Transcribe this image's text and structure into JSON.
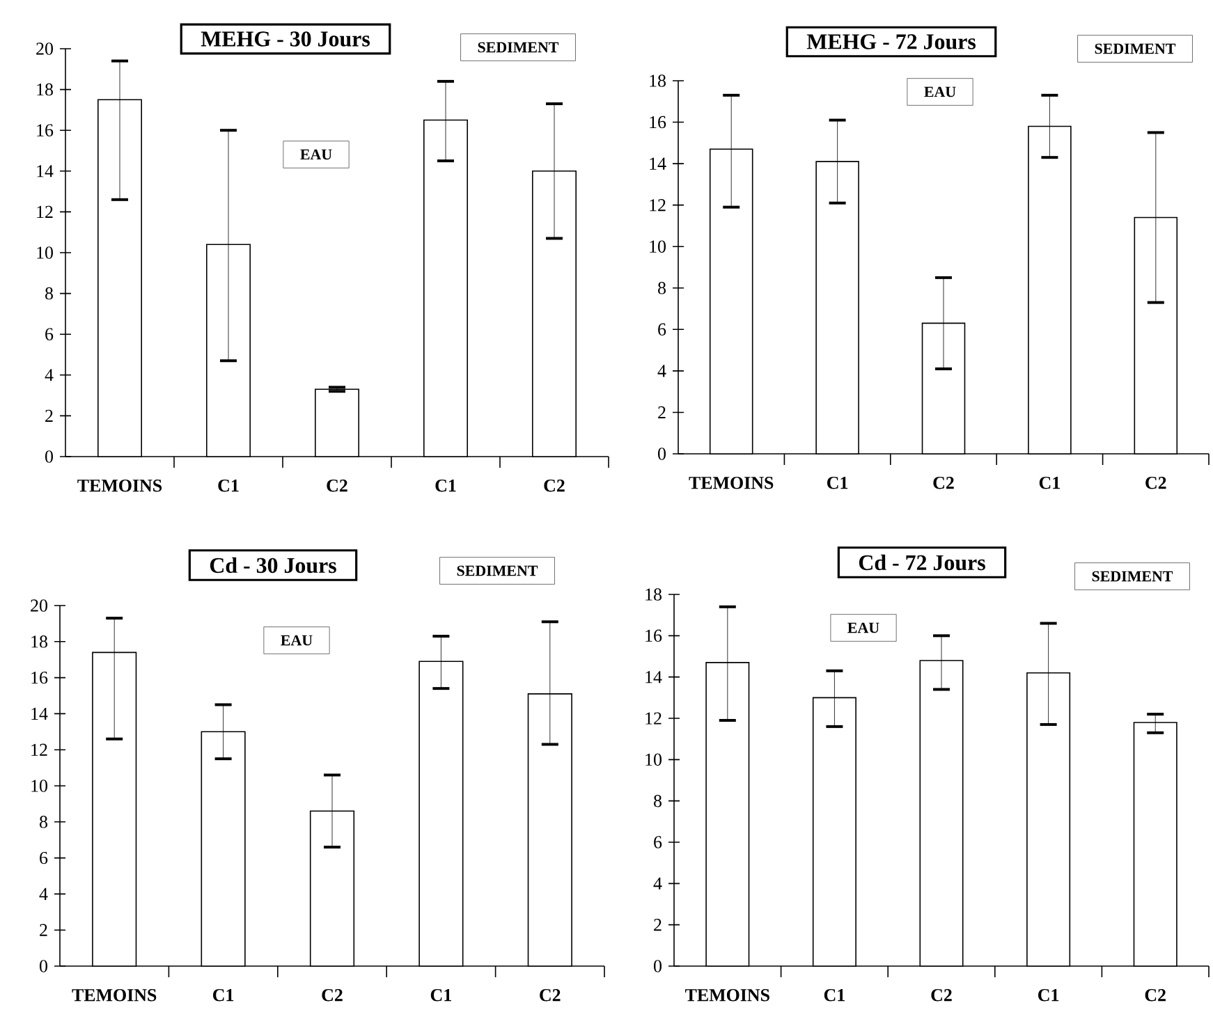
{
  "chart_data": [
    {
      "type": "bar",
      "title": "MEHG - 30 Jours",
      "categories": [
        "TEMOINS",
        "C1",
        "C2",
        "C1",
        "C2"
      ],
      "values": [
        17.5,
        10.4,
        3.3,
        16.5,
        14.0
      ],
      "color": "#ffffff",
      "errors": [
        [
          12.6,
          19.4
        ],
        [
          4.7,
          16.0
        ],
        [
          3.2,
          3.4
        ],
        [
          14.5,
          18.4
        ],
        [
          10.7,
          17.3
        ]
      ],
      "ylim": [
        0,
        20
      ],
      "yticks": [
        0,
        2,
        4,
        6,
        8,
        10,
        12,
        14,
        16,
        18,
        20
      ],
      "annotations": [
        "EAU",
        "SEDIMENT"
      ]
    },
    {
      "type": "bar",
      "title": "MEHG - 72 Jours",
      "categories": [
        "TEMOINS",
        "C1",
        "C2",
        "C1",
        "C2"
      ],
      "values": [
        14.7,
        14.1,
        6.3,
        15.8,
        11.4
      ],
      "color": "#ffffff",
      "errors": [
        [
          11.9,
          17.3
        ],
        [
          12.1,
          16.1
        ],
        [
          4.1,
          8.5
        ],
        [
          14.3,
          17.3
        ],
        [
          7.3,
          15.5
        ]
      ],
      "ylim": [
        0,
        18
      ],
      "yticks": [
        0,
        2,
        4,
        6,
        8,
        10,
        12,
        14,
        16,
        18
      ],
      "annotations": [
        "EAU",
        "SEDIMENT"
      ]
    },
    {
      "type": "bar",
      "title": "Cd - 30 Jours",
      "categories": [
        "TEMOINS",
        "C1",
        "C2",
        "C1",
        "C2"
      ],
      "values": [
        17.4,
        13.0,
        8.6,
        16.9,
        15.1
      ],
      "color": "#ffffff",
      "errors": [
        [
          12.6,
          19.3
        ],
        [
          11.5,
          14.5
        ],
        [
          6.6,
          10.6
        ],
        [
          15.4,
          18.3
        ],
        [
          12.3,
          19.1
        ]
      ],
      "ylim": [
        0,
        20
      ],
      "yticks": [
        0,
        2,
        4,
        6,
        8,
        10,
        12,
        14,
        16,
        18,
        20
      ],
      "annotations": [
        "EAU",
        "SEDIMENT"
      ]
    },
    {
      "type": "bar",
      "title": "Cd - 72 Jours",
      "categories": [
        "TEMOINS",
        "C1",
        "C2",
        "C1",
        "C2"
      ],
      "values": [
        14.7,
        13.0,
        14.8,
        14.2,
        11.8
      ],
      "color": "#ffffff",
      "errors": [
        [
          11.9,
          17.4
        ],
        [
          11.6,
          14.3
        ],
        [
          13.4,
          16.0
        ],
        [
          11.7,
          16.6
        ],
        [
          11.3,
          12.2
        ]
      ],
      "ylim": [
        0,
        18
      ],
      "yticks": [
        0,
        2,
        4,
        6,
        8,
        10,
        12,
        14,
        16,
        18
      ],
      "annotations": [
        "EAU",
        "SEDIMENT"
      ]
    }
  ]
}
